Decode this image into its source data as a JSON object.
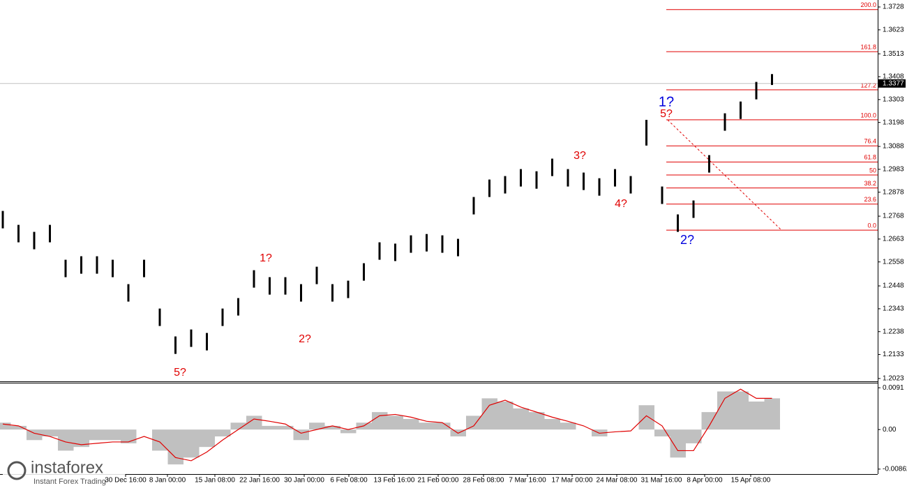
{
  "chart_data": {
    "type": "ohlc",
    "categories": [
      "30 Dec 16:00",
      "8 Jan 00:00",
      "15 Jan 08:00",
      "22 Jan 16:00",
      "30 Jan 00:00",
      "6 Feb 08:00",
      "13 Feb 16:00",
      "21 Feb 00:00",
      "28 Feb 08:00",
      "7 Mar 16:00",
      "17 Mar 00:00",
      "24 Mar 08:00",
      "31 Mar 16:00",
      "8 Apr 00:00",
      "15 Apr 08:00"
    ],
    "high": [
      1.2792,
      1.2728,
      1.2696,
      1.2728,
      1.2568,
      1.2584,
      1.2584,
      1.2568,
      1.2456,
      1.2568,
      1.2344,
      1.2216,
      1.2248,
      1.2232,
      1.2344,
      1.2392,
      1.252,
      1.2488,
      1.2488,
      1.2456,
      1.2536,
      1.2456,
      1.2472,
      1.2552,
      1.2648,
      1.2642,
      1.268,
      1.2686,
      1.268,
      1.2664,
      1.2856,
      1.2936,
      1.2952,
      1.2984,
      1.2974,
      1.3032,
      1.2984,
      1.2968,
      1.2942,
      1.2984,
      1.2952,
      1.321,
      1.2904,
      1.2776,
      1.284,
      1.3048,
      1.324,
      1.3294,
      1.3384,
      1.342
    ],
    "low": [
      1.2712,
      1.2648,
      1.2616,
      1.2648,
      1.2488,
      1.2504,
      1.2504,
      1.2488,
      1.2376,
      1.2488,
      1.2264,
      1.2136,
      1.2168,
      1.2152,
      1.2264,
      1.2312,
      1.244,
      1.2408,
      1.2408,
      1.2376,
      1.2456,
      1.2376,
      1.2392,
      1.2472,
      1.2568,
      1.2562,
      1.26,
      1.2606,
      1.26,
      1.2584,
      1.2776,
      1.2856,
      1.2872,
      1.2904,
      1.2894,
      1.2952,
      1.2904,
      1.2888,
      1.2862,
      1.2904,
      1.2872,
      1.3092,
      1.2824,
      1.2696,
      1.276,
      1.2968,
      1.316,
      1.3214,
      1.3304,
      1.337
    ],
    "color": "#000000",
    "ylim": [
      1.201,
      1.376
    ],
    "yticks": [
      1.3728,
      1.3623,
      1.3513,
      1.3408,
      1.3303,
      1.3198,
      1.3088,
      1.2983,
      1.2878,
      1.2768,
      1.2663,
      1.2558,
      1.2448,
      1.2343,
      1.2238,
      1.2133,
      1.2023
    ],
    "current_price": 1.3377,
    "fibonacci": {
      "low": 1.2704,
      "high": 1.321,
      "color": "#e00000",
      "levels": [
        {
          "value": 0,
          "label": "0.0"
        },
        23.6,
        38.2,
        50,
        {
          "value": 61.8,
          "label": "61.8"
        },
        76.4,
        {
          "value": 100,
          "label": "100.0"
        },
        127.2,
        161.8,
        {
          "value": 200,
          "label": "200.0"
        }
      ]
    },
    "annotations": [
      "5?",
      "1?",
      "2?",
      "3?",
      "4?",
      "5?",
      "1?",
      "2?"
    ],
    "indicator": {
      "histogram": [
        0.0015,
        0.0008,
        -0.0023,
        -0.0015,
        -0.0046,
        -0.0038,
        -0.0023,
        -0.0023,
        -0.003,
        0,
        -0.0046,
        -0.0076,
        -0.0061,
        -0.0038,
        -0.0015,
        0.0015,
        0.003,
        0.0008,
        0.0008,
        -0.0023,
        0.0015,
        0.0008,
        -0.0008,
        0.0015,
        0.0038,
        0.003,
        0.0023,
        0.0015,
        0.0015,
        -0.0015,
        0.003,
        0.0068,
        0.0061,
        0.0046,
        0.0038,
        0.0023,
        0.0015,
        0,
        -0.0015,
        0,
        0,
        0.0053,
        -0.0015,
        -0.0061,
        -0.003,
        0.0038,
        0.0083,
        0.0083,
        0.0061,
        0.0068
      ],
      "signal": [
        0.0012,
        0.0008,
        -0.0008,
        -0.0015,
        -0.0027,
        -0.0033,
        -0.003,
        -0.0027,
        -0.0027,
        -0.0015,
        -0.0027,
        -0.0061,
        -0.0068,
        -0.0049,
        -0.0023,
        0,
        0.0023,
        0.0018,
        0.0012,
        -0.0008,
        0,
        0.0008,
        0,
        0.0008,
        0.003,
        0.0033,
        0.0027,
        0.0018,
        0.0015,
        -0.0008,
        0.0008,
        0.0053,
        0.0064,
        0.0049,
        0.0038,
        0.0027,
        0.0018,
        0.0008,
        -0.0008,
        -0.0005,
        -0.0003,
        0.003,
        0.0008,
        -0.0046,
        -0.0046,
        0.0008,
        0.0068,
        0.0088,
        0.0068,
        0.0068
      ],
      "histogram_color": "#c0c0c0",
      "signal_color": "#e00000",
      "ylim": [
        -0.0097,
        0.0102
      ],
      "yticks": [
        0.0091,
        {
          "value": 0,
          "label": "0.00"
        },
        -0.00862
      ]
    },
    "watermark": {
      "brand": "instaforex",
      "tagline": "Instant Forex Trading"
    }
  }
}
